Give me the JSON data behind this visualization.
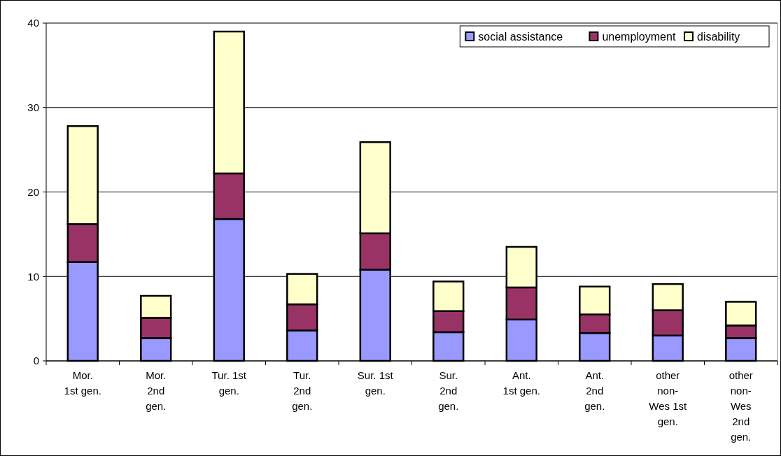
{
  "chart_data": {
    "type": "bar",
    "stacked": true,
    "categories": [
      "Mor.\n1st gen.",
      "Mor.\n2nd\ngen.",
      "Tur. 1st\ngen.",
      "Tur.\n2nd\ngen.",
      "Sur. 1st\ngen.",
      "Sur.\n2nd\ngen.",
      "Ant.\n1st gen.",
      "Ant.\n2nd\ngen.",
      "other\nnon-\nWes 1st\ngen.",
      "other\nnon-\nWes\n2nd\ngen."
    ],
    "series": [
      {
        "name": "social assistance",
        "color": "#9999ff",
        "values": [
          11.7,
          2.7,
          16.8,
          3.6,
          10.8,
          3.4,
          4.9,
          3.3,
          3.0,
          2.7
        ]
      },
      {
        "name": "unemployment",
        "color": "#993366",
        "values": [
          4.5,
          2.4,
          5.4,
          3.1,
          4.3,
          2.5,
          3.8,
          2.2,
          3.0,
          1.5
        ]
      },
      {
        "name": "disability",
        "color": "#ffffcc",
        "values": [
          11.6,
          2.6,
          16.8,
          3.6,
          10.8,
          3.5,
          4.8,
          3.3,
          3.1,
          2.8
        ]
      }
    ],
    "ylim": [
      0,
      40
    ],
    "yticks": [
      0,
      10,
      20,
      30,
      40
    ],
    "grid": "y",
    "legend": "top right"
  }
}
